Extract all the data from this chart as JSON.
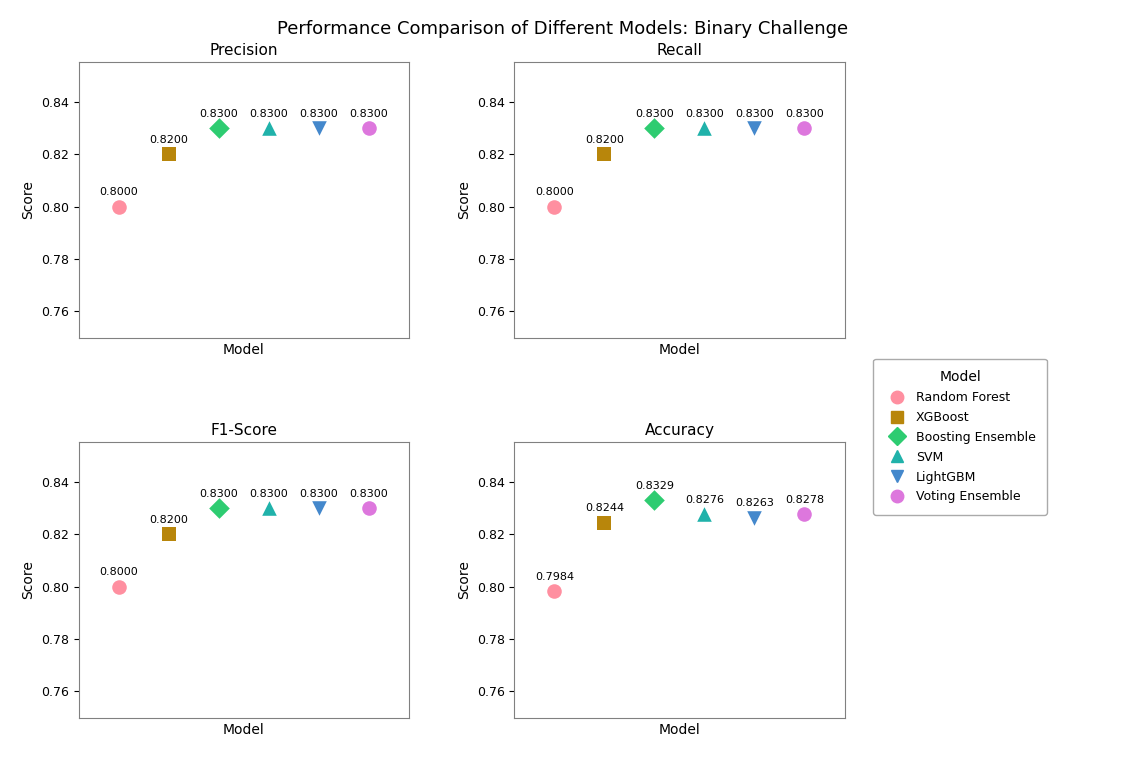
{
  "title": "Performance Comparison of Different Models: Binary Challenge",
  "subplots": [
    {
      "title": "Precision",
      "xlabel": "Model",
      "ylabel": "Score",
      "models": [
        "Random Forest",
        "XGBoost",
        "Boosting Ensemble",
        "SVM",
        "LightGBM",
        "Voting Ensemble"
      ],
      "x_positions": [
        1,
        2,
        3,
        4,
        5,
        6
      ],
      "values": [
        0.8,
        0.82,
        0.83,
        0.83,
        0.83,
        0.83
      ],
      "ylim": [
        0.75,
        0.855
      ]
    },
    {
      "title": "Recall",
      "xlabel": "Model",
      "ylabel": "Score",
      "models": [
        "Random Forest",
        "XGBoost",
        "Boosting Ensemble",
        "SVM",
        "LightGBM",
        "Voting Ensemble"
      ],
      "x_positions": [
        1,
        2,
        3,
        4,
        5,
        6
      ],
      "values": [
        0.8,
        0.82,
        0.83,
        0.83,
        0.83,
        0.83
      ],
      "ylim": [
        0.75,
        0.855
      ]
    },
    {
      "title": "F1-Score",
      "xlabel": "Model",
      "ylabel": "Score",
      "models": [
        "Random Forest",
        "XGBoost",
        "Boosting Ensemble",
        "SVM",
        "LightGBM",
        "Voting Ensemble"
      ],
      "x_positions": [
        1,
        2,
        3,
        4,
        5,
        6
      ],
      "values": [
        0.8,
        0.82,
        0.83,
        0.83,
        0.83,
        0.83
      ],
      "ylim": [
        0.75,
        0.855
      ]
    },
    {
      "title": "Accuracy",
      "xlabel": "Model",
      "ylabel": "Score",
      "models": [
        "Random Forest",
        "XGBoost",
        "Boosting Ensemble",
        "SVM",
        "LightGBM",
        "Voting Ensemble"
      ],
      "x_positions": [
        1,
        2,
        3,
        4,
        5,
        6
      ],
      "values": [
        0.7984,
        0.8244,
        0.8329,
        0.8276,
        0.8263,
        0.8278
      ],
      "ylim": [
        0.75,
        0.855
      ]
    }
  ],
  "model_styles": {
    "Random Forest": {
      "color": "#FF8FA0",
      "marker": "o",
      "label": "Random Forest"
    },
    "XGBoost": {
      "color": "#B8860B",
      "marker": "s",
      "label": "XGBoost"
    },
    "Boosting Ensemble": {
      "color": "#2ECC71",
      "marker": "D",
      "label": "Boosting Ensemble"
    },
    "SVM": {
      "color": "#20B2AA",
      "marker": "^",
      "label": "SVM"
    },
    "LightGBM": {
      "color": "#4488CC",
      "marker": "v",
      "label": "LightGBM"
    },
    "Voting Ensemble": {
      "color": "#DD77DD",
      "marker": "o",
      "label": "Voting Ensemble"
    }
  },
  "background_color": "#FFFFFF",
  "marker_size": 110,
  "annotation_fontsize": 8,
  "axis_label_fontsize": 10,
  "subplot_title_fontsize": 11,
  "suptitle_fontsize": 13,
  "legend_fontsize": 9,
  "legend_title_fontsize": 10,
  "xlim": [
    0.2,
    6.8
  ],
  "yticks": [
    0.76,
    0.78,
    0.8,
    0.82,
    0.84
  ]
}
